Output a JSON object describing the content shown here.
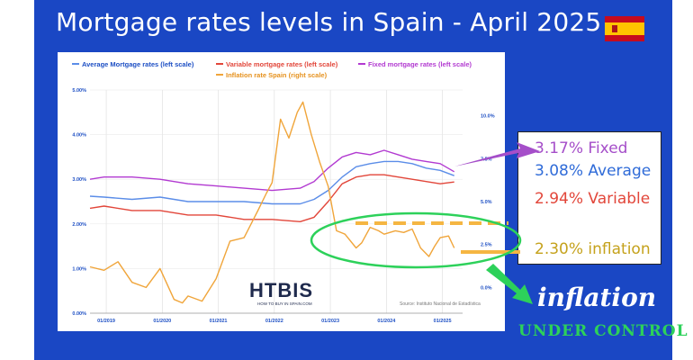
{
  "headline": "Mortgage rates levels in Spain - April 2025",
  "flag": {
    "name": "spain-flag",
    "red": "#c60b1e",
    "yellow": "#ffc400"
  },
  "callout": {
    "fixed": "3.17% Fixed",
    "average": "3.08% Average",
    "variable": "2.94% Variable",
    "inflation": "2.30% inflation"
  },
  "annotation": {
    "word1": "inflation",
    "word2": "UNDER CONTROL"
  },
  "logo": {
    "text": "HTBIS",
    "subtext": "HOW TO BUY IN SPAIN.COM"
  },
  "colors": {
    "panel": "#1a47c4",
    "average": "#5b8de8",
    "variable": "#e2463a",
    "fixed": "#b23ad1",
    "inflation": "#f0a53a",
    "ellipse": "#2dd15a"
  },
  "chart_data": {
    "type": "line",
    "title": "",
    "legend": [
      "Average Mortgage rates (left scale)",
      "Variable mortgage rates (left scale)",
      "Fixed mortgage rates (left scale)",
      "Inflation rate Spain (right scale)"
    ],
    "source": "Source: Instituto Nacional de Estadística",
    "x_ticks": [
      "01/2019",
      "01/2020",
      "01/2021",
      "01/2022",
      "01/2023",
      "01/2024",
      "01/2025"
    ],
    "y_left": {
      "ticks": [
        "0.00%",
        "1.00%",
        "2.00%",
        "3.00%",
        "4.00%",
        "5.00%"
      ],
      "lim": [
        0,
        5
      ]
    },
    "y_right": {
      "ticks": [
        "0.0%",
        "2.5%",
        "5.0%",
        "7.5%",
        "10.0%"
      ],
      "lim": [
        -1.5,
        11.5
      ]
    },
    "series": [
      {
        "name": "Average Mortgage rates",
        "axis": "left",
        "color": "#5b8de8",
        "x": [
          2018.75,
          2019.0,
          2019.5,
          2020.0,
          2020.5,
          2021.0,
          2021.5,
          2022.0,
          2022.5,
          2022.75,
          2023.0,
          2023.25,
          2023.5,
          2023.75,
          2024.0,
          2024.25,
          2024.5,
          2024.75,
          2025.0,
          2025.25
        ],
        "y": [
          2.62,
          2.6,
          2.55,
          2.6,
          2.5,
          2.5,
          2.5,
          2.45,
          2.45,
          2.55,
          2.75,
          3.05,
          3.28,
          3.35,
          3.4,
          3.4,
          3.35,
          3.25,
          3.2,
          3.08
        ]
      },
      {
        "name": "Variable mortgage rates",
        "axis": "left",
        "color": "#e2463a",
        "x": [
          2018.75,
          2019.0,
          2019.5,
          2020.0,
          2020.5,
          2021.0,
          2021.5,
          2022.0,
          2022.5,
          2022.75,
          2023.0,
          2023.25,
          2023.5,
          2023.75,
          2024.0,
          2024.25,
          2024.5,
          2024.75,
          2025.0,
          2025.25
        ],
        "y": [
          2.35,
          2.4,
          2.3,
          2.3,
          2.2,
          2.2,
          2.1,
          2.1,
          2.05,
          2.15,
          2.5,
          2.9,
          3.05,
          3.1,
          3.1,
          3.05,
          3.0,
          2.95,
          2.9,
          2.94
        ]
      },
      {
        "name": "Fixed mortgage rates",
        "axis": "left",
        "color": "#b23ad1",
        "x": [
          2018.75,
          2019.0,
          2019.5,
          2020.0,
          2020.5,
          2021.0,
          2021.5,
          2022.0,
          2022.5,
          2022.75,
          2023.0,
          2023.25,
          2023.5,
          2023.75,
          2024.0,
          2024.25,
          2024.5,
          2024.75,
          2025.0,
          2025.25
        ],
        "y": [
          3.0,
          3.05,
          3.05,
          3.0,
          2.9,
          2.85,
          2.8,
          2.75,
          2.8,
          2.95,
          3.25,
          3.5,
          3.6,
          3.55,
          3.65,
          3.55,
          3.45,
          3.4,
          3.35,
          3.17
        ]
      },
      {
        "name": "Inflation rate Spain",
        "axis": "right",
        "color": "#f0a53a",
        "x": [
          2018.75,
          2019.0,
          2019.25,
          2019.5,
          2019.75,
          2020.0,
          2020.25,
          2020.4,
          2020.5,
          2020.75,
          2021.0,
          2021.25,
          2021.5,
          2021.75,
          2021.9,
          2022.0,
          2022.15,
          2022.3,
          2022.45,
          2022.55,
          2022.7,
          2022.85,
          2023.0,
          2023.15,
          2023.3,
          2023.5,
          2023.6,
          2023.75,
          2023.9,
          2024.0,
          2024.2,
          2024.35,
          2024.5,
          2024.65,
          2024.8,
          2024.9,
          2025.0,
          2025.15,
          2025.25
        ],
        "y": [
          1.2,
          1.0,
          1.5,
          0.3,
          0.0,
          1.1,
          -0.7,
          -0.9,
          -0.5,
          -0.8,
          0.5,
          2.7,
          2.9,
          4.5,
          5.5,
          6.1,
          9.8,
          8.7,
          10.2,
          10.8,
          8.9,
          7.3,
          5.9,
          3.3,
          3.1,
          2.3,
          2.6,
          3.5,
          3.3,
          3.1,
          3.3,
          3.2,
          3.4,
          2.3,
          1.8,
          2.4,
          2.9,
          3.0,
          2.3
        ]
      }
    ]
  }
}
